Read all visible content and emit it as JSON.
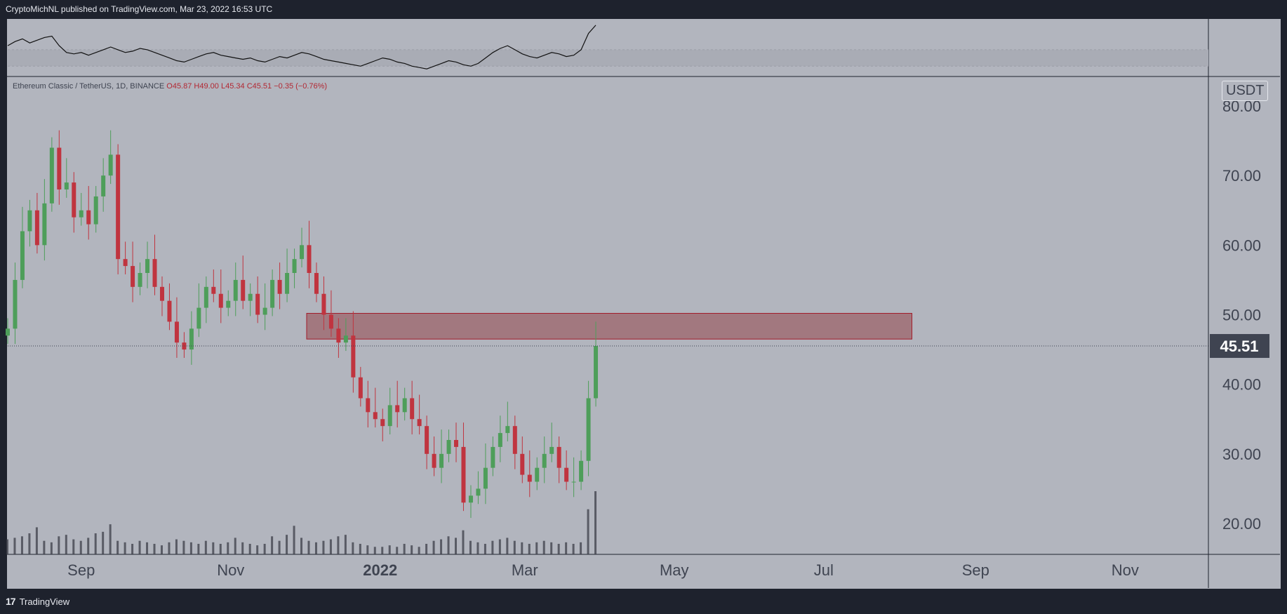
{
  "header": {
    "text": "CryptoMichNL published on TradingView.com, Mar 23, 2022 16:53 UTC"
  },
  "footer": {
    "logo": "17",
    "brand": "TradingView"
  },
  "symbol": {
    "name": "Ethereum Classic / TetherUS, 1D, BINANCE",
    "open": "O45.87",
    "high": "H49.00",
    "low": "L45.34",
    "close": "C45.51",
    "change": "−0.35 (−0.76%)"
  },
  "currency_label": "USDT",
  "last_price_label": "45.51",
  "colors": {
    "background": "#b2b5be",
    "frame": "#1e222d",
    "up": "#4e9e5a",
    "down": "#c0343f",
    "zone_fill": "#a2787f",
    "zone_border": "#a31c2a",
    "volume": "#3b3e47",
    "text": "#3f4451",
    "price_label_bg": "#3f4451"
  },
  "chart_data": {
    "type": "candlestick",
    "y_axis": {
      "ticks": [
        "80.00",
        "70.00",
        "60.00",
        "50.00",
        "40.00",
        "30.00",
        "20.00"
      ],
      "tick_values": [
        80,
        70,
        60,
        50,
        40,
        30,
        20
      ],
      "range": [
        16,
        82
      ]
    },
    "x_axis": {
      "labels": [
        "Sep",
        "Nov",
        "2022",
        "Mar",
        "May",
        "Jul",
        "Sep",
        "Nov"
      ],
      "label_dates": [
        "2021-09-01",
        "2021-11-01",
        "2022-01-01",
        "2022-03-01",
        "2022-05-01",
        "2022-07-01",
        "2022-09-01",
        "2022-11-01"
      ],
      "range": [
        "2021-08-02",
        "2022-12-05"
      ]
    },
    "last_price": 45.51,
    "resistance_zone": {
      "price_low": 46.5,
      "price_high": 50.2,
      "date_start": "2021-12-02",
      "date_end": "2022-08-06"
    },
    "close_series": {
      "start": "2021-08-02",
      "interval_days": 3,
      "values": [
        48,
        55,
        62,
        65,
        60,
        66,
        74,
        68,
        69,
        64,
        65,
        63,
        67,
        70,
        73,
        58,
        57,
        54,
        56,
        58,
        54,
        52,
        49,
        46,
        45,
        48,
        51,
        54,
        53,
        51,
        52,
        55,
        52,
        53,
        50,
        51,
        55,
        53,
        56,
        58,
        60,
        56,
        53,
        50,
        48,
        46,
        47,
        41,
        38,
        36,
        35,
        34,
        37,
        36,
        38,
        35,
        34,
        30,
        28,
        30,
        32,
        31,
        23,
        24,
        25,
        28,
        31,
        33,
        34,
        30,
        27,
        26,
        28,
        30,
        31,
        28,
        26,
        26,
        29,
        38,
        45.51
      ]
    },
    "volume": {
      "values": [
        10,
        11,
        12,
        14,
        18,
        9,
        8,
        12,
        13,
        10,
        9,
        11,
        14,
        15,
        20,
        9,
        8,
        7,
        9,
        8,
        7,
        6,
        8,
        10,
        9,
        8,
        7,
        9,
        8,
        7,
        8,
        11,
        8,
        7,
        6,
        7,
        12,
        9,
        13,
        19,
        11,
        9,
        8,
        9,
        10,
        12,
        13,
        8,
        7,
        6,
        5,
        5,
        6,
        5,
        7,
        6,
        5,
        7,
        9,
        10,
        12,
        11,
        16,
        9,
        8,
        7,
        9,
        10,
        11,
        9,
        8,
        7,
        8,
        9,
        8,
        7,
        8,
        7,
        8,
        30,
        42
      ],
      "range": [
        0,
        70
      ]
    },
    "indicator": {
      "values": [
        55,
        58,
        60,
        57,
        59,
        61,
        62,
        55,
        50,
        49,
        50,
        48,
        50,
        52,
        54,
        52,
        50,
        51,
        53,
        52,
        50,
        48,
        46,
        44,
        43,
        45,
        47,
        49,
        50,
        48,
        47,
        46,
        45,
        46,
        44,
        43,
        45,
        47,
        46,
        48,
        50,
        49,
        47,
        45,
        44,
        43,
        42,
        41,
        40,
        42,
        44,
        46,
        45,
        43,
        42,
        40,
        39,
        38,
        40,
        42,
        44,
        43,
        41,
        40,
        42,
        46,
        50,
        53,
        55,
        52,
        49,
        47,
        46,
        48,
        50,
        49,
        47,
        48,
        52,
        64,
        70
      ],
      "range": [
        35,
        72
      ],
      "band": [
        40,
        52
      ]
    }
  }
}
